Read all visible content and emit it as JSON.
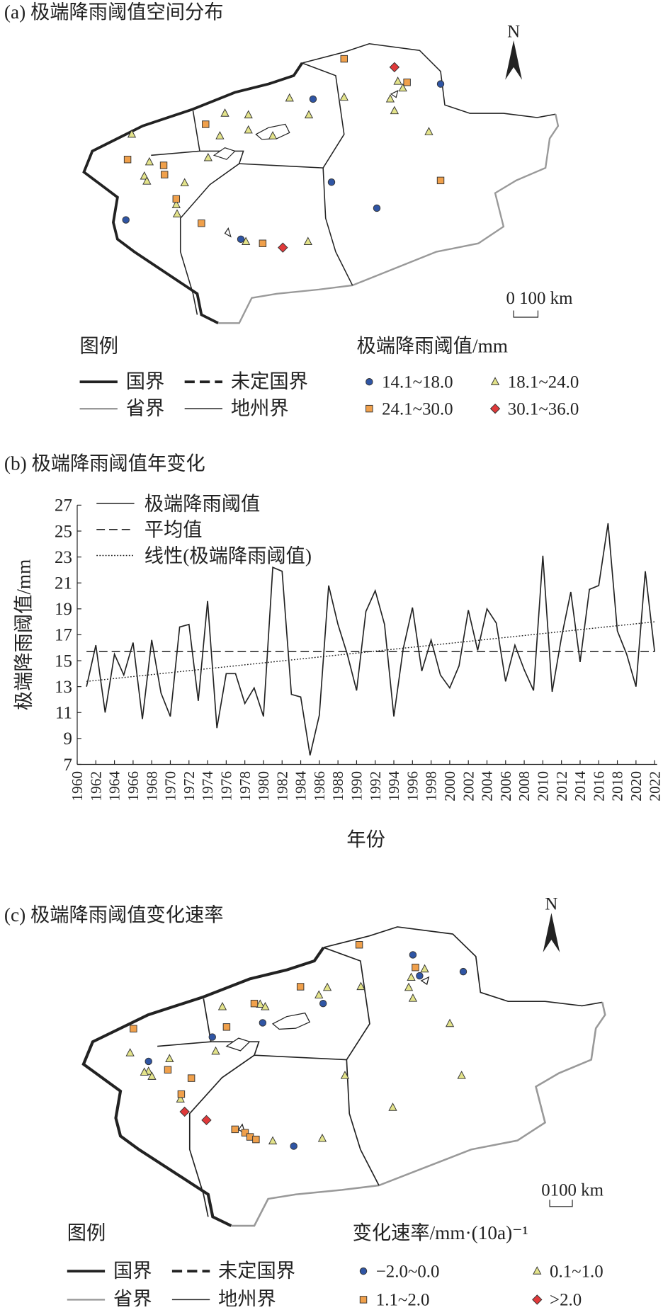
{
  "chart_data": [
    {
      "type": "map",
      "title": "(a) 极端降雨阈值空间分布",
      "north": "N",
      "scale_label": "0 100 km",
      "legend_heading": "图例",
      "boundary_legend": [
        "国界",
        "未定国界",
        "省界",
        "地州界"
      ],
      "legend_title": "极端降雨阈值/mm",
      "series": [
        {
          "name": "14.1~18.0",
          "color": "#2f55a4",
          "marker": "circle"
        },
        {
          "name": "18.1~24.0",
          "color": "#e3e38a",
          "marker": "triangle"
        },
        {
          "name": "24.1~30.0",
          "color": "#f0a04b",
          "marker": "square"
        },
        {
          "name": "30.1~36.0",
          "color": "#e0393a",
          "marker": "diamond"
        }
      ]
    },
    {
      "type": "line",
      "title": "(b) 极端降雨阈值年变化",
      "xlabel": "年份",
      "ylabel": "极端降雨阈值/mm",
      "x": [
        1961,
        1962,
        1963,
        1964,
        1965,
        1966,
        1967,
        1968,
        1969,
        1970,
        1971,
        1972,
        1973,
        1974,
        1975,
        1976,
        1977,
        1978,
        1979,
        1980,
        1981,
        1982,
        1983,
        1984,
        1985,
        1986,
        1987,
        1988,
        1989,
        1990,
        1991,
        1992,
        1993,
        1994,
        1995,
        1996,
        1997,
        1998,
        1999,
        2000,
        2001,
        2002,
        2003,
        2004,
        2005,
        2006,
        2007,
        2008,
        2009,
        2010,
        2011,
        2012,
        2013,
        2014,
        2015,
        2016,
        2017,
        2018,
        2019,
        2020,
        2021,
        2022
      ],
      "series": [
        {
          "name": "极端降雨阈值",
          "color": "#222222",
          "style": "solid",
          "values": [
            13.0,
            16.2,
            11.0,
            15.5,
            13.9,
            16.4,
            10.5,
            16.6,
            12.5,
            10.7,
            17.6,
            17.8,
            11.9,
            19.6,
            9.8,
            14.0,
            14.0,
            11.7,
            12.9,
            10.7,
            22.2,
            21.9,
            12.4,
            12.2,
            7.7,
            10.8,
            20.8,
            17.8,
            15.5,
            12.7,
            18.8,
            20.4,
            17.8,
            10.7,
            15.9,
            19.1,
            14.2,
            16.6,
            13.9,
            12.9,
            14.6,
            18.9,
            15.8,
            19.0,
            17.9,
            13.4,
            16.2,
            14.3,
            12.7,
            23.1,
            12.6,
            16.8,
            20.3,
            14.9,
            20.5,
            20.8,
            25.6,
            17.3,
            15.5,
            13.0,
            21.9,
            15.7
          ]
        },
        {
          "name": "平均值",
          "color": "#222222",
          "style": "dashed",
          "x": [
            1961,
            2022
          ],
          "values": [
            15.7,
            15.7
          ]
        },
        {
          "name": "线性(极端降雨阈值)",
          "color": "#222222",
          "style": "dotted",
          "x": [
            1961,
            2022
          ],
          "values": [
            13.4,
            18.0
          ]
        }
      ],
      "xlim": [
        1960,
        2022
      ],
      "xticks": [
        1960,
        1962,
        1964,
        1966,
        1968,
        1970,
        1972,
        1974,
        1976,
        1978,
        1980,
        1982,
        1984,
        1986,
        1988,
        1990,
        1992,
        1994,
        1996,
        1998,
        2000,
        2002,
        2004,
        2006,
        2008,
        2010,
        2012,
        2014,
        2016,
        2018,
        2020,
        2022
      ],
      "ylim": [
        7,
        27
      ],
      "yticks": [
        7,
        9,
        11,
        13,
        15,
        17,
        19,
        21,
        23,
        25,
        27
      ]
    },
    {
      "type": "map",
      "title": "(c) 极端降雨阈值变化速率",
      "north": "N",
      "scale_label": "0100 km",
      "legend_heading": "图例",
      "boundary_legend": [
        "国界",
        "未定国界",
        "省界",
        "地州界"
      ],
      "legend_title": "变化速率/mm·(10a)⁻¹",
      "series": [
        {
          "name": "−2.0~0.0",
          "color": "#2f55a4",
          "marker": "circle"
        },
        {
          "name": "0.1~1.0",
          "color": "#e3e38a",
          "marker": "triangle"
        },
        {
          "name": "1.1~2.0",
          "color": "#f0a04b",
          "marker": "square"
        },
        {
          "name": ">2.0",
          "color": "#e0393a",
          "marker": "diamond"
        }
      ]
    }
  ]
}
